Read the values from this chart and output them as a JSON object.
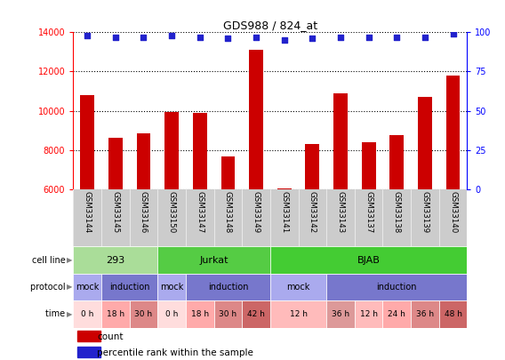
{
  "title": "GDS988 / 824_at",
  "samples": [
    "GSM33144",
    "GSM33145",
    "GSM33146",
    "GSM33150",
    "GSM33147",
    "GSM33148",
    "GSM33149",
    "GSM33141",
    "GSM33142",
    "GSM33143",
    "GSM33137",
    "GSM33138",
    "GSM33139",
    "GSM33140"
  ],
  "counts": [
    10800,
    8600,
    8850,
    9950,
    9900,
    7650,
    13100,
    6050,
    8300,
    10900,
    8400,
    8750,
    10700,
    11800
  ],
  "percentile_ranks": [
    98,
    97,
    97,
    98,
    97,
    96,
    97,
    95,
    96,
    97,
    97,
    97,
    97,
    99
  ],
  "ylim_left": [
    6000,
    14000
  ],
  "ylim_right": [
    0,
    100
  ],
  "yticks_left": [
    6000,
    8000,
    10000,
    12000,
    14000
  ],
  "yticks_right": [
    0,
    25,
    50,
    75,
    100
  ],
  "bar_color": "#cc0000",
  "dot_color": "#2222cc",
  "bar_width": 0.5,
  "cell_line_groups": [
    {
      "label": "293",
      "start": 0,
      "end": 3,
      "color": "#aadd99"
    },
    {
      "label": "Jurkat",
      "start": 3,
      "end": 7,
      "color": "#55cc44"
    },
    {
      "label": "BJAB",
      "start": 7,
      "end": 14,
      "color": "#44cc33"
    }
  ],
  "protocol_groups": [
    {
      "label": "mock",
      "start": 0,
      "end": 1,
      "color": "#aaaaee"
    },
    {
      "label": "induction",
      "start": 1,
      "end": 3,
      "color": "#7777cc"
    },
    {
      "label": "mock",
      "start": 3,
      "end": 4,
      "color": "#aaaaee"
    },
    {
      "label": "induction",
      "start": 4,
      "end": 7,
      "color": "#7777cc"
    },
    {
      "label": "mock",
      "start": 7,
      "end": 9,
      "color": "#aaaaee"
    },
    {
      "label": "induction",
      "start": 9,
      "end": 14,
      "color": "#7777cc"
    }
  ],
  "time_groups": [
    {
      "label": "0 h",
      "start": 0,
      "end": 1,
      "color": "#ffdddd"
    },
    {
      "label": "18 h",
      "start": 1,
      "end": 2,
      "color": "#ffaaaa"
    },
    {
      "label": "30 h",
      "start": 2,
      "end": 3,
      "color": "#dd8888"
    },
    {
      "label": "0 h",
      "start": 3,
      "end": 4,
      "color": "#ffdddd"
    },
    {
      "label": "18 h",
      "start": 4,
      "end": 5,
      "color": "#ffaaaa"
    },
    {
      "label": "30 h",
      "start": 5,
      "end": 6,
      "color": "#dd8888"
    },
    {
      "label": "42 h",
      "start": 6,
      "end": 7,
      "color": "#cc6666"
    },
    {
      "label": "12 h",
      "start": 7,
      "end": 9,
      "color": "#ffbbbb"
    },
    {
      "label": "36 h",
      "start": 9,
      "end": 10,
      "color": "#dd9999"
    },
    {
      "label": "12 h",
      "start": 10,
      "end": 11,
      "color": "#ffbbbb"
    },
    {
      "label": "24 h",
      "start": 11,
      "end": 12,
      "color": "#ffaaaa"
    },
    {
      "label": "36 h",
      "start": 12,
      "end": 13,
      "color": "#dd8888"
    },
    {
      "label": "48 h",
      "start": 13,
      "end": 14,
      "color": "#cc6666"
    }
  ],
  "row_labels": [
    "cell line",
    "protocol",
    "time"
  ],
  "legend_count_color": "#cc0000",
  "legend_dot_color": "#2222cc",
  "xlabel_bg": "#cccccc"
}
